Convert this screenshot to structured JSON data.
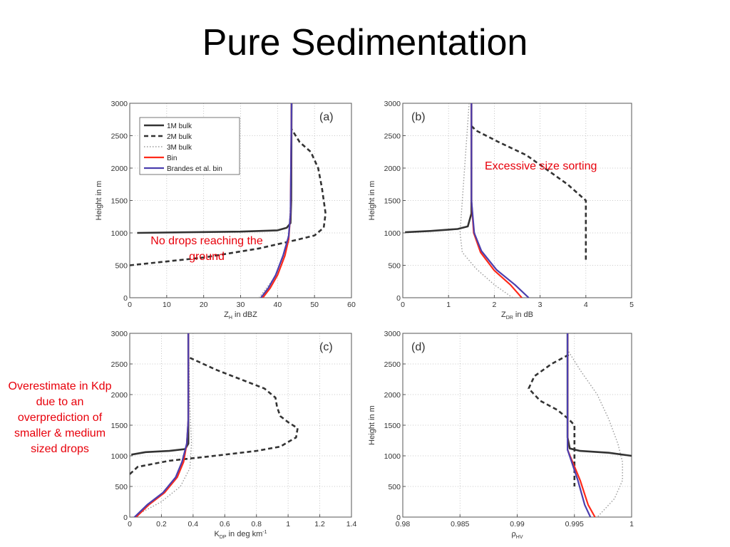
{
  "title": "Pure Sedimentation",
  "colors": {
    "1M bulk": "#333333",
    "2M bulk": "#333333",
    "3M bulk": "#9a9a9a",
    "Bin": "#ff2a1a",
    "Brandes et al. bin": "#4b3fae",
    "annotation": "#e8000b"
  },
  "annotations": {
    "a": "No drops reaching the ground",
    "b": "Excessive size sorting",
    "c": "Overestimate in Kdp due to an overprediction of smaller & medium sized drops"
  },
  "chart_data": [
    {
      "type": "line",
      "panel": "(a)",
      "xlabel": "Z_H in dBZ",
      "ylabel": "Height in m",
      "xlim": [
        0,
        60
      ],
      "ylim": [
        0,
        3000
      ],
      "xticks": [
        0,
        10,
        20,
        30,
        40,
        50,
        60
      ],
      "yticks": [
        0,
        500,
        1000,
        1500,
        2000,
        2500,
        3000
      ],
      "grid": true,
      "legend": "top-left",
      "series": [
        {
          "name": "1M bulk",
          "style": "solid",
          "points": [
            [
              2,
              1000
            ],
            [
              30,
              1020
            ],
            [
              40,
              1040
            ],
            [
              42.5,
              1080
            ],
            [
              43.5,
              1150
            ],
            [
              43.7,
              1500
            ],
            [
              43.8,
              3000
            ]
          ]
        },
        {
          "name": "2M bulk",
          "style": "dashed",
          "points": [
            [
              0,
              500
            ],
            [
              20,
              620
            ],
            [
              35,
              760
            ],
            [
              45,
              890
            ],
            [
              50,
              960
            ],
            [
              52.5,
              1080
            ],
            [
              53,
              1300
            ],
            [
              52,
              1700
            ],
            [
              51,
              2000
            ],
            [
              49,
              2250
            ],
            [
              46,
              2400
            ],
            [
              43.8,
              2600
            ]
          ]
        },
        {
          "name": "3M bulk",
          "style": "dotted",
          "points": [
            [
              35,
              0
            ],
            [
              37,
              150
            ],
            [
              39,
              300
            ],
            [
              41,
              500
            ],
            [
              42.5,
              800
            ],
            [
              43.2,
              1100
            ],
            [
              43.6,
              1600
            ],
            [
              43.8,
              3000
            ]
          ]
        },
        {
          "name": "Bin",
          "style": "solid",
          "points": [
            [
              36,
              0
            ],
            [
              38,
              150
            ],
            [
              40,
              350
            ],
            [
              42,
              650
            ],
            [
              43,
              900
            ],
            [
              43.5,
              1300
            ],
            [
              43.8,
              3000
            ]
          ]
        },
        {
          "name": "Brandes et al. bin",
          "style": "solid",
          "points": [
            [
              35.5,
              0
            ],
            [
              37.5,
              150
            ],
            [
              39.5,
              350
            ],
            [
              41.5,
              650
            ],
            [
              43,
              950
            ],
            [
              43.5,
              1300
            ],
            [
              43.8,
              3000
            ]
          ]
        }
      ]
    },
    {
      "type": "line",
      "panel": "(b)",
      "xlabel": "Z_DR in dB",
      "ylabel": "Height in m",
      "xlim": [
        0,
        5
      ],
      "ylim": [
        0,
        3000
      ],
      "xticks": [
        0,
        1,
        2,
        3,
        4,
        5
      ],
      "yticks": [
        0,
        500,
        1000,
        1500,
        2000,
        2500,
        3000
      ],
      "grid": true,
      "series": [
        {
          "name": "1M bulk",
          "style": "solid",
          "points": [
            [
              0.05,
              1010
            ],
            [
              0.6,
              1030
            ],
            [
              1.2,
              1060
            ],
            [
              1.42,
              1100
            ],
            [
              1.5,
              1300
            ],
            [
              1.5,
              3000
            ]
          ]
        },
        {
          "name": "2M bulk",
          "style": "dashed",
          "points": [
            [
              1.5,
              2650
            ],
            [
              1.6,
              2580
            ],
            [
              2.1,
              2400
            ],
            [
              2.7,
              2200
            ],
            [
              3.2,
              1950
            ],
            [
              3.6,
              1750
            ],
            [
              4.0,
              1500
            ],
            [
              4.0,
              1200
            ],
            [
              4.0,
              550
            ]
          ]
        },
        {
          "name": "3M bulk",
          "style": "dotted",
          "points": [
            [
              2.4,
              0
            ],
            [
              2.0,
              200
            ],
            [
              1.6,
              450
            ],
            [
              1.3,
              700
            ],
            [
              1.25,
              1000
            ],
            [
              1.3,
              1500
            ],
            [
              1.35,
              2000
            ],
            [
              1.45,
              3000
            ]
          ]
        },
        {
          "name": "Bin",
          "style": "solid",
          "points": [
            [
              2.6,
              0
            ],
            [
              2.35,
              200
            ],
            [
              2.0,
              420
            ],
            [
              1.7,
              700
            ],
            [
              1.55,
              1000
            ],
            [
              1.5,
              1500
            ],
            [
              1.5,
              3000
            ]
          ]
        },
        {
          "name": "Brandes et al. bin",
          "style": "solid",
          "points": [
            [
              2.75,
              0
            ],
            [
              2.45,
              200
            ],
            [
              2.05,
              430
            ],
            [
              1.72,
              720
            ],
            [
              1.56,
              1000
            ],
            [
              1.5,
              1500
            ],
            [
              1.5,
              3000
            ]
          ]
        }
      ]
    },
    {
      "type": "line",
      "panel": "(c)",
      "xlabel": "K_DP in deg km^-1",
      "ylabel": "Height in m",
      "xlim": [
        0,
        1.4
      ],
      "ylim": [
        0,
        3000
      ],
      "xticks": [
        0,
        0.2,
        0.4,
        0.6,
        0.8,
        1,
        1.2,
        1.4
      ],
      "yticks": [
        0,
        500,
        1000,
        1500,
        2000,
        2500,
        3000
      ],
      "grid": true,
      "series": [
        {
          "name": "1M bulk",
          "style": "solid",
          "points": [
            [
              0.01,
              1020
            ],
            [
              0.1,
              1060
            ],
            [
              0.25,
              1080
            ],
            [
              0.35,
              1110
            ],
            [
              0.37,
              1200
            ],
            [
              0.37,
              1500
            ],
            [
              0.37,
              3000
            ]
          ]
        },
        {
          "name": "2M bulk",
          "style": "dashed",
          "points": [
            [
              0,
              700
            ],
            [
              0.05,
              820
            ],
            [
              0.25,
              920
            ],
            [
              0.5,
              990
            ],
            [
              0.8,
              1080
            ],
            [
              0.95,
              1150
            ],
            [
              1.05,
              1300
            ],
            [
              1.06,
              1450
            ],
            [
              1.0,
              1550
            ],
            [
              0.95,
              1650
            ],
            [
              0.93,
              1800
            ],
            [
              0.92,
              1950
            ],
            [
              0.85,
              2100
            ],
            [
              0.7,
              2250
            ],
            [
              0.55,
              2400
            ],
            [
              0.38,
              2600
            ]
          ]
        },
        {
          "name": "3M bulk",
          "style": "dotted",
          "points": [
            [
              0.02,
              0
            ],
            [
              0.2,
              250
            ],
            [
              0.32,
              500
            ],
            [
              0.38,
              800
            ],
            [
              0.39,
              1200
            ],
            [
              0.38,
              1800
            ],
            [
              0.37,
              3000
            ]
          ]
        },
        {
          "name": "Bin",
          "style": "solid",
          "points": [
            [
              0.04,
              0
            ],
            [
              0.12,
              200
            ],
            [
              0.22,
              400
            ],
            [
              0.3,
              650
            ],
            [
              0.34,
              900
            ],
            [
              0.36,
              1200
            ],
            [
              0.37,
              1600
            ],
            [
              0.37,
              3000
            ]
          ]
        },
        {
          "name": "Brandes et al. bin",
          "style": "solid",
          "points": [
            [
              0.03,
              0
            ],
            [
              0.11,
              200
            ],
            [
              0.21,
              400
            ],
            [
              0.29,
              650
            ],
            [
              0.33,
              900
            ],
            [
              0.36,
              1200
            ],
            [
              0.37,
              1600
            ],
            [
              0.37,
              3000
            ]
          ]
        }
      ]
    },
    {
      "type": "line",
      "panel": "(d)",
      "xlabel": "ρ_hv",
      "ylabel": "Height in m",
      "xlim": [
        0.98,
        1
      ],
      "ylim": [
        0,
        3000
      ],
      "xticks": [
        0.98,
        0.985,
        0.99,
        0.995,
        1
      ],
      "yticks": [
        0,
        500,
        1000,
        1500,
        2000,
        2500,
        3000
      ],
      "grid": true,
      "series": [
        {
          "name": "1M bulk",
          "style": "solid",
          "points": [
            [
              0.9944,
              3000
            ],
            [
              0.9944,
              1300
            ],
            [
              0.9946,
              1120
            ],
            [
              0.9955,
              1080
            ],
            [
              0.998,
              1050
            ],
            [
              1.0,
              1000
            ]
          ]
        },
        {
          "name": "2M bulk",
          "style": "dashed",
          "points": [
            [
              0.9945,
              2650
            ],
            [
              0.993,
              2500
            ],
            [
              0.9915,
              2300
            ],
            [
              0.991,
              2100
            ],
            [
              0.992,
              1900
            ],
            [
              0.9935,
              1750
            ],
            [
              0.9945,
              1600
            ],
            [
              0.995,
              1500
            ],
            [
              0.995,
              1000
            ],
            [
              0.995,
              500
            ]
          ]
        },
        {
          "name": "3M bulk",
          "style": "dotted",
          "points": [
            [
              0.9945,
              2700
            ],
            [
              0.9955,
              2400
            ],
            [
              0.997,
              2000
            ],
            [
              0.998,
              1600
            ],
            [
              0.9988,
              1200
            ],
            [
              0.9992,
              900
            ],
            [
              0.9992,
              600
            ],
            [
              0.9985,
              300
            ],
            [
              0.9975,
              100
            ],
            [
              0.997,
              0
            ]
          ]
        },
        {
          "name": "Bin",
          "style": "solid",
          "points": [
            [
              0.9944,
              3000
            ],
            [
              0.9944,
              1100
            ],
            [
              0.9955,
              600
            ],
            [
              0.9962,
              200
            ],
            [
              0.9968,
              0
            ]
          ]
        },
        {
          "name": "Brandes et al. bin",
          "style": "solid",
          "points": [
            [
              0.9944,
              3000
            ],
            [
              0.9944,
              1100
            ],
            [
              0.9953,
              600
            ],
            [
              0.9959,
              200
            ],
            [
              0.9964,
              0
            ]
          ]
        }
      ]
    }
  ]
}
